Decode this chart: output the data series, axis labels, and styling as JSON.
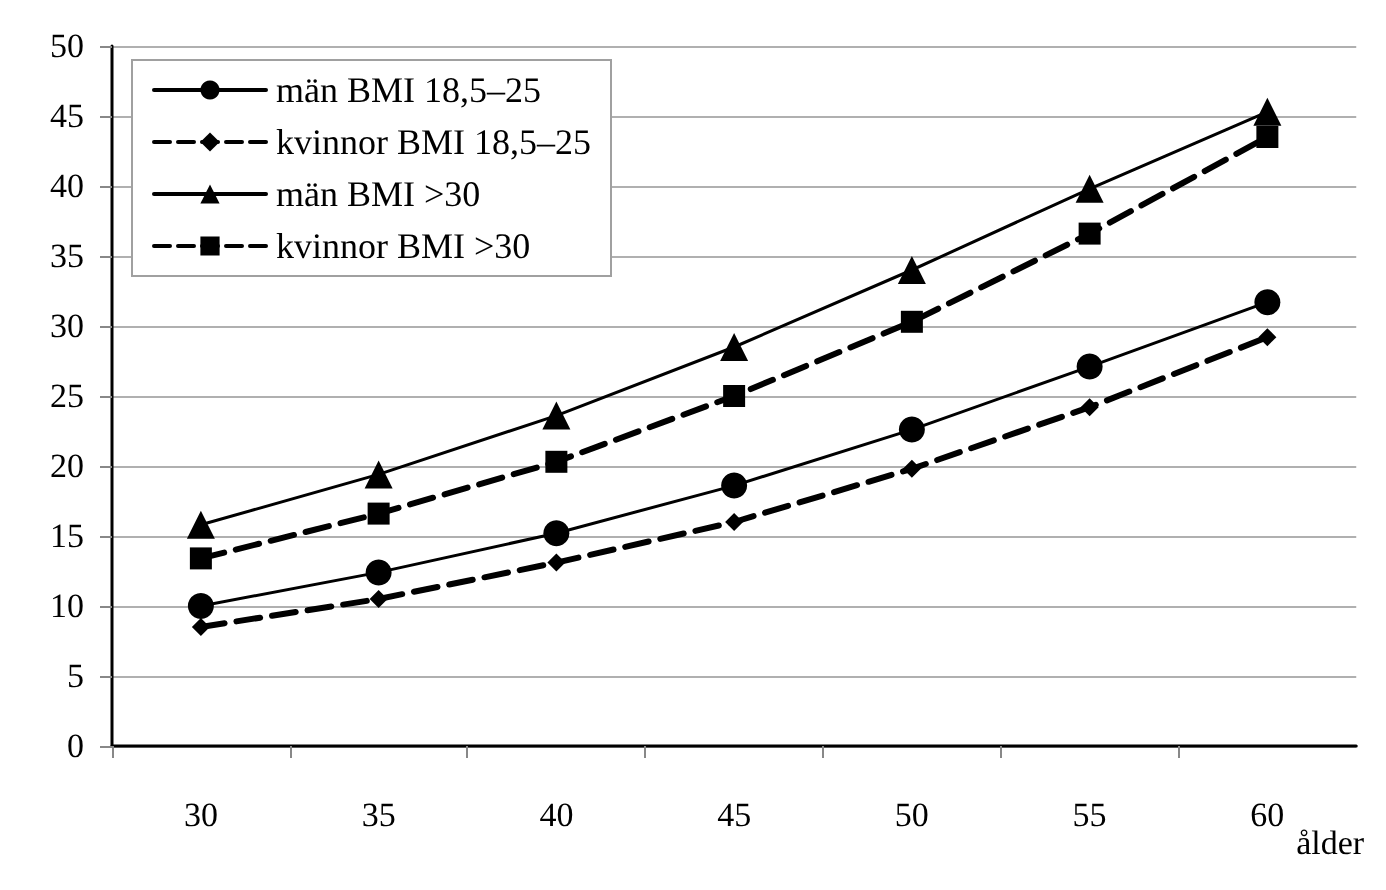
{
  "chart_data": {
    "type": "line",
    "xlabel": "ålder",
    "categories": [
      "30",
      "35",
      "40",
      "45",
      "50",
      "55",
      "60"
    ],
    "series": [
      {
        "name": "män BMI 18,5–25",
        "color": "#000000",
        "marker": "circle",
        "line_style": "solid",
        "values": [
          10,
          12.4,
          15.2,
          18.6,
          22.6,
          27.1,
          31.7
        ]
      },
      {
        "name": "kvinnor BMI 18,5–25",
        "color": "#000000",
        "marker": "diamond",
        "line_style": "dashed",
        "values": [
          8.5,
          10.5,
          13.1,
          16.0,
          19.8,
          24.2,
          29.2
        ]
      },
      {
        "name": "män BMI >30",
        "color": "#000000",
        "marker": "triangle",
        "line_style": "solid",
        "values": [
          15.8,
          19.4,
          23.6,
          28.5,
          34.0,
          39.8,
          45.3
        ]
      },
      {
        "name": "kvinnor BMI >30",
        "color": "#000000",
        "marker": "square",
        "line_style": "dashed",
        "values": [
          13.4,
          16.6,
          20.3,
          25.0,
          30.3,
          36.6,
          43.5
        ]
      }
    ],
    "ylim": [
      0,
      50
    ],
    "yticks": [
      0,
      5,
      10,
      15,
      20,
      25,
      30,
      35,
      40,
      45,
      50
    ],
    "grid": "y",
    "legend": "top left"
  }
}
